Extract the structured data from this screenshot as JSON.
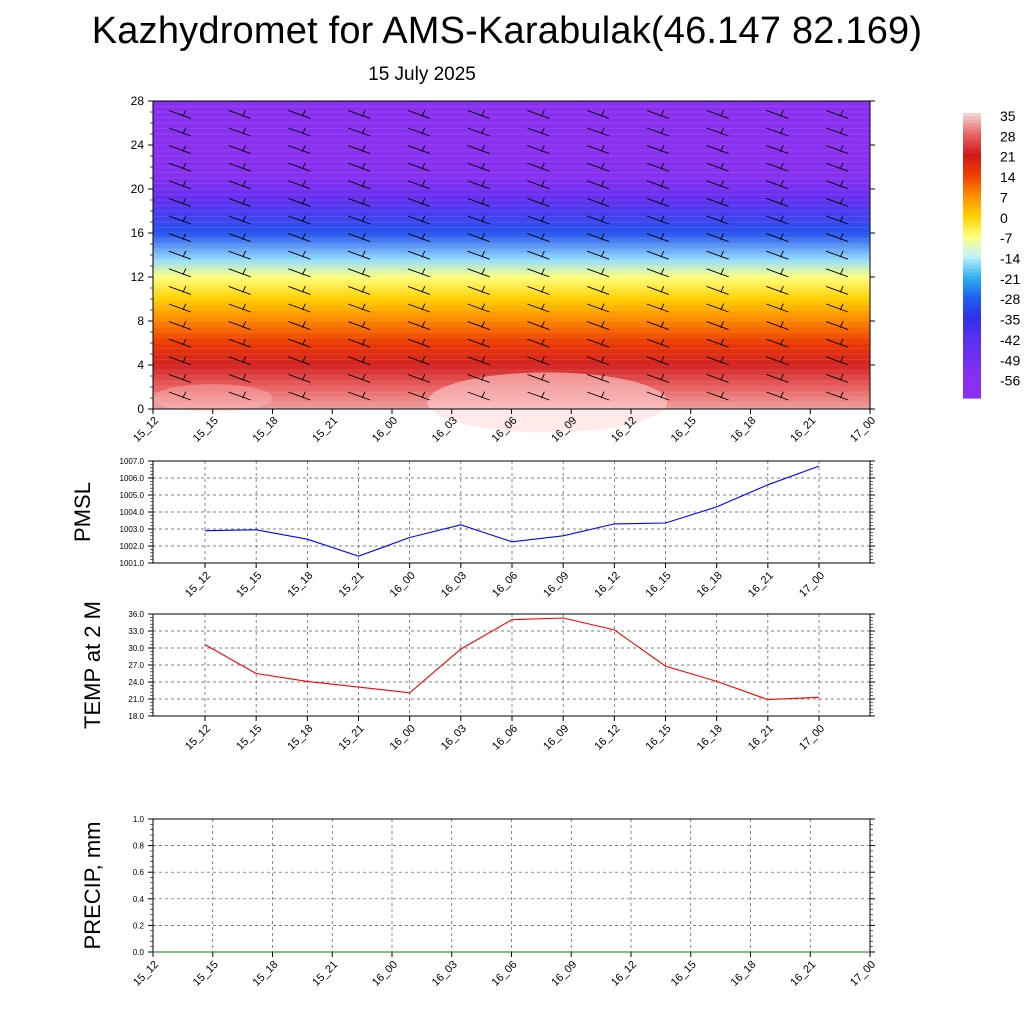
{
  "page": {
    "title": "Kazhydromet for AMS-Karabulak(46.147 82.169)",
    "subtitle": "15 July 2025"
  },
  "chart_data": [
    {
      "id": "cross-section",
      "type": "heatmap",
      "title": "",
      "xlabel": "",
      "ylabel": "",
      "x_categories": [
        "15_12",
        "15_15",
        "15_18",
        "15_21",
        "16_00",
        "16_03",
        "16_06",
        "16_09",
        "16_12",
        "16_15",
        "16_18",
        "16_21",
        "17_00"
      ],
      "ylim": [
        0,
        28
      ],
      "y_ticks": [
        0,
        4,
        8,
        12,
        16,
        20,
        24,
        28
      ],
      "colorbar": {
        "labels": [
          "35",
          "28",
          "21",
          "14",
          "7",
          "0",
          "-7",
          "-14",
          "-21",
          "-28",
          "-35",
          "-42",
          "-49",
          "-56"
        ],
        "colors": [
          "#f4d0d0",
          "#e86060",
          "#d01818",
          "#f04000",
          "#ff9000",
          "#ffd000",
          "#ffff80",
          "#c0f0ff",
          "#30b0f0",
          "#2060f0",
          "#3030e8",
          "#5830f0",
          "#7030f0",
          "#8a30f0"
        ]
      },
      "temperature_by_level": [
        {
          "height": 0,
          "value": 32
        },
        {
          "height": 2,
          "value": 28
        },
        {
          "height": 4,
          "value": 22
        },
        {
          "height": 6,
          "value": 15
        },
        {
          "height": 8,
          "value": 8
        },
        {
          "height": 10,
          "value": 0
        },
        {
          "height": 12,
          "value": -7
        },
        {
          "height": 13.5,
          "value": -16
        },
        {
          "height": 16,
          "value": -30
        },
        {
          "height": 19,
          "value": -45
        },
        {
          "height": 21,
          "value": -55
        },
        {
          "height": 23,
          "value": -58
        },
        {
          "height": 28,
          "value": -60
        }
      ],
      "wind_barbs": "shown"
    },
    {
      "id": "pmsl",
      "type": "line",
      "ylabel": "PMSL",
      "categories": [
        "15_12",
        "15_15",
        "15_18",
        "15_21",
        "16_00",
        "16_03",
        "16_06",
        "16_09",
        "16_12",
        "16_15",
        "16_18",
        "16_21",
        "17_00"
      ],
      "series": [
        {
          "values": [
            1002.9,
            1002.95,
            1002.4,
            1001.4,
            1002.5,
            1003.25,
            1002.25,
            1002.6,
            1003.3,
            1003.35,
            1004.3,
            1005.6,
            1006.7
          ],
          "color": "#0000ff"
        }
      ],
      "ylim": [
        1001.0,
        1007.0
      ],
      "y_ticks": [
        "1001.0",
        "1002.0",
        "1003.0",
        "1004.0",
        "1005.0",
        "1006.0",
        "1007.0"
      ],
      "grid": true
    },
    {
      "id": "temp2m",
      "type": "line",
      "ylabel": "TEMP at 2 M",
      "categories": [
        "15_12",
        "15_15",
        "15_18",
        "15_21",
        "16_00",
        "16_03",
        "16_06",
        "16_09",
        "16_12",
        "16_15",
        "16_18",
        "16_21",
        "17_00"
      ],
      "series": [
        {
          "values": [
            30.6,
            25.5,
            24.1,
            23.1,
            22.1,
            29.8,
            35.0,
            35.3,
            33.2,
            26.8,
            24.1,
            20.9,
            21.3
          ],
          "color": "#ff0000"
        }
      ],
      "ylim": [
        18.0,
        36.0
      ],
      "y_ticks": [
        "18.0",
        "21.0",
        "24.0",
        "27.0",
        "30.0",
        "33.0",
        "36.0"
      ],
      "grid": true
    },
    {
      "id": "precip",
      "type": "line",
      "ylabel": "PRECIP, mm",
      "categories": [
        "15_12",
        "15_15",
        "15_18",
        "15_21",
        "16_00",
        "16_03",
        "16_06",
        "16_09",
        "16_12",
        "16_15",
        "16_18",
        "16_21",
        "17_00"
      ],
      "series": [
        {
          "values": [
            0,
            0,
            0,
            0,
            0,
            0,
            0,
            0,
            0,
            0,
            0,
            0,
            0
          ],
          "color": "#008000"
        }
      ],
      "ylim": [
        0.0,
        1.0
      ],
      "y_ticks": [
        "0.0",
        "0.2",
        "0.4",
        "0.6",
        "0.8",
        "1.0"
      ],
      "grid": true
    }
  ]
}
